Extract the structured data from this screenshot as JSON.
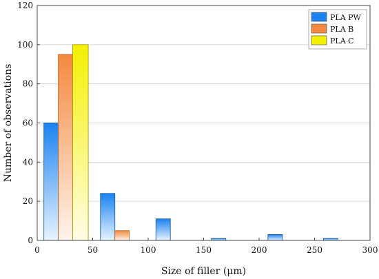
{
  "chart_data": {
    "type": "bar",
    "xlabel": "Size of filler (μm)",
    "ylabel": "Number of observations",
    "xlim": [
      0,
      300
    ],
    "ylim": [
      0,
      120
    ],
    "x_ticks": [
      0,
      50,
      100,
      150,
      200,
      250,
      300
    ],
    "y_ticks": [
      0,
      20,
      40,
      60,
      80,
      100,
      120
    ],
    "grid": "horizontal",
    "legend_position": "top-right",
    "series": [
      {
        "name": "PLA PW",
        "color": "#1a82f0",
        "bars": [
          {
            "x0": 6,
            "x1": 19,
            "value": 60
          },
          {
            "x0": 57,
            "x1": 70,
            "value": 24
          },
          {
            "x0": 107,
            "x1": 120,
            "value": 11
          },
          {
            "x0": 157,
            "x1": 170,
            "value": 1
          },
          {
            "x0": 208,
            "x1": 221,
            "value": 3
          },
          {
            "x0": 258,
            "x1": 271,
            "value": 1
          }
        ]
      },
      {
        "name": "PLA B",
        "color": "#f4893f",
        "bars": [
          {
            "x0": 19,
            "x1": 32,
            "value": 95
          },
          {
            "x0": 70,
            "x1": 83,
            "value": 5
          }
        ]
      },
      {
        "name": "PLA C",
        "color": "#f5f000",
        "bars": [
          {
            "x0": 32,
            "x1": 46,
            "value": 100
          }
        ]
      }
    ]
  }
}
